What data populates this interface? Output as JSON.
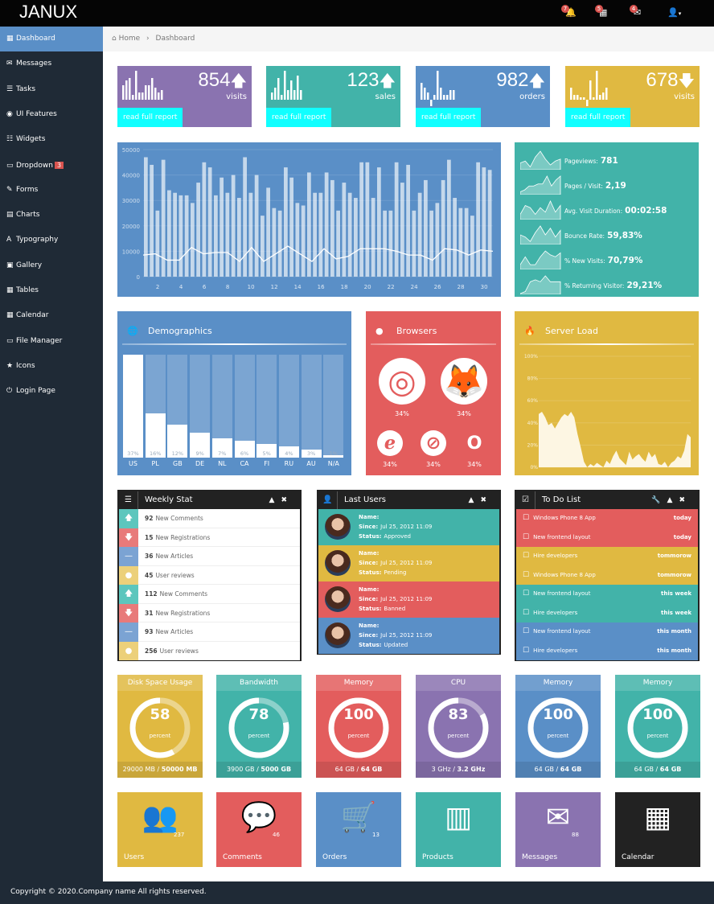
{
  "app": {
    "logo": "JANUX"
  },
  "navbar": {
    "notifications": "7",
    "tasks": "5",
    "messages": "4",
    "user_caret": "▾"
  },
  "sidebar": {
    "items": [
      {
        "label": "Dashboard",
        "icon": "▦"
      },
      {
        "label": "Messages",
        "icon": "✉"
      },
      {
        "label": "Tasks",
        "icon": "☰"
      },
      {
        "label": "UI Features",
        "icon": "◉"
      },
      {
        "label": "Widgets",
        "icon": "☷"
      },
      {
        "label": "Dropdown",
        "icon": "▭",
        "badge": "3"
      },
      {
        "label": "Forms",
        "icon": "✎"
      },
      {
        "label": "Charts",
        "icon": "▤"
      },
      {
        "label": "Typography",
        "icon": "A"
      },
      {
        "label": "Gallery",
        "icon": "▣"
      },
      {
        "label": "Tables",
        "icon": "▦"
      },
      {
        "label": "Calendar",
        "icon": "▦"
      },
      {
        "label": "File Manager",
        "icon": "▭"
      },
      {
        "label": "Icons",
        "icon": "★"
      },
      {
        "label": "Login Page",
        "icon": "⏻"
      }
    ]
  },
  "breadcrumb": {
    "home": "Home",
    "sep": "›",
    "current": "Dashboard"
  },
  "stats": [
    {
      "value": "854",
      "arrow": "🡅",
      "label": "visits",
      "link": "read full report",
      "color": "#8a73b0",
      "bars": [
        6,
        8,
        9,
        2,
        12,
        3,
        3,
        6,
        6,
        9,
        5,
        3,
        4
      ]
    },
    {
      "value": "123",
      "arrow": "🡅",
      "label": "sales",
      "link": "read full report",
      "color": "#42b3a9",
      "bars": [
        3,
        5,
        9,
        2,
        12,
        4,
        8,
        4,
        10,
        4
      ]
    },
    {
      "value": "982",
      "arrow": "🡅",
      "label": "orders",
      "link": "read full report",
      "color": "#5a8fc7",
      "bars": [
        7,
        5,
        3,
        -4,
        2,
        12,
        5,
        2,
        2,
        4,
        4
      ]
    },
    {
      "value": "678",
      "arrow": "🡇",
      "label": "visits",
      "link": "read full report",
      "color": "#e0b941",
      "bars": [
        5,
        2,
        2,
        1,
        1,
        -4,
        8,
        1,
        12,
        2,
        3,
        5
      ]
    }
  ],
  "chart_data": {
    "type": "bar",
    "title": "",
    "xlabel": "",
    "ylabel": "",
    "ylim": [
      0,
      50000
    ],
    "yticks": [
      "0",
      "10000",
      "20000",
      "30000",
      "40000",
      "50000"
    ],
    "xticks": [
      "2",
      "4",
      "6",
      "8",
      "10",
      "12",
      "14",
      "16",
      "18",
      "20",
      "22",
      "24",
      "26",
      "28",
      "30"
    ],
    "bars": [
      47000,
      44000,
      26000,
      46000,
      34000,
      33000,
      32000,
      32000,
      29000,
      37000,
      45000,
      43000,
      32000,
      39000,
      33000,
      40000,
      31000,
      47000,
      33000,
      40000,
      24000,
      35000,
      27000,
      26000,
      43000,
      39000,
      29000,
      28000,
      41000,
      33000,
      33000,
      41000,
      38000,
      26000,
      37000,
      33000,
      31000,
      45000,
      45000,
      31000,
      43000,
      26000,
      26000,
      45000,
      37000,
      44000,
      26000,
      33000,
      38000,
      26000,
      29000,
      38000,
      46000,
      31000,
      27000,
      27000,
      24000,
      45000,
      43000,
      42000
    ],
    "line": [
      8500,
      9000,
      6500,
      6500,
      11500,
      9000,
      9500,
      9500,
      6000,
      11500,
      6000,
      9000,
      12000,
      9000,
      6000,
      11000,
      7000,
      8000,
      11000,
      11000,
      11000,
      10000,
      8500,
      8500,
      6500,
      11000,
      10500,
      8500,
      10500,
      10000
    ]
  },
  "metrics": [
    {
      "label": "Pageviews:",
      "value": "781",
      "spark": [
        3,
        4,
        1,
        6,
        9,
        5,
        2,
        4,
        5
      ]
    },
    {
      "label": "Pages / Visit:",
      "value": "2,19",
      "spark": [
        1,
        2,
        4,
        4,
        5,
        5,
        9,
        4,
        7,
        9
      ]
    },
    {
      "label": "Avg. Visit Duration:",
      "value": "00:02:58",
      "spark": [
        2,
        6,
        5,
        2,
        5,
        3,
        8,
        3,
        6
      ]
    },
    {
      "label": "Bounce Rate:",
      "value": "59,83%",
      "spark": [
        4,
        3,
        1,
        5,
        8,
        4,
        7,
        3,
        6
      ]
    },
    {
      "label": "% New Visits:",
      "value": "70,79%",
      "spark": [
        2,
        6,
        2,
        2,
        6,
        9,
        7,
        6,
        8
      ]
    },
    {
      "label": "% Returning Visitor:",
      "value": "29,21%",
      "spark": [
        0,
        1,
        6,
        7,
        6,
        9,
        6,
        6,
        6
      ]
    }
  ],
  "demographics": {
    "title": "Demographics",
    "countries": [
      "US",
      "PL",
      "GB",
      "DE",
      "NL",
      "CA",
      "FI",
      "RU",
      "AU",
      "N/A"
    ],
    "values": [
      37,
      16,
      12,
      9,
      7,
      6,
      5,
      4,
      3,
      1
    ]
  },
  "browsers": {
    "title": "Browsers",
    "items": [
      {
        "name": "chrome",
        "pct": "34%"
      },
      {
        "name": "firefox",
        "pct": "34%"
      },
      {
        "name": "ie",
        "pct": "34%"
      },
      {
        "name": "safari",
        "pct": "34%"
      },
      {
        "name": "opera",
        "pct": "34%"
      }
    ]
  },
  "server_load": {
    "title": "Server Load",
    "yticks": [
      "0%",
      "20%",
      "40%",
      "60%",
      "80%",
      "100%"
    ],
    "values": [
      48,
      50,
      45,
      38,
      40,
      35,
      40,
      45,
      48,
      46,
      50,
      45,
      30,
      18,
      5,
      0,
      3,
      1,
      4,
      2,
      0,
      6,
      3,
      10,
      15,
      8,
      5,
      2,
      14,
      7,
      10,
      12,
      8,
      5,
      14,
      9,
      12,
      3,
      2,
      5,
      0,
      4,
      6,
      10,
      8,
      15,
      30,
      27
    ]
  },
  "weekly": {
    "title": "Weekly Stat",
    "rows": [
      {
        "n": "92",
        "t": "New Comments",
        "icon": "🡅",
        "color": "#5cc6bd"
      },
      {
        "n": "15",
        "t": "New Registrations",
        "icon": "🡇",
        "color": "#e87a7a"
      },
      {
        "n": "36",
        "t": "New Articles",
        "icon": "—",
        "color": "#7ba3d3"
      },
      {
        "n": "45",
        "t": "User reviews",
        "icon": "●",
        "color": "#ecd07a"
      },
      {
        "n": "112",
        "t": "New Comments",
        "icon": "🡅",
        "color": "#5cc6bd"
      },
      {
        "n": "31",
        "t": "New Registrations",
        "icon": "🡇",
        "color": "#e87a7a"
      },
      {
        "n": "93",
        "t": "New Articles",
        "icon": "—",
        "color": "#7ba3d3"
      },
      {
        "n": "256",
        "t": "User reviews",
        "icon": "●",
        "color": "#ecd07a"
      }
    ]
  },
  "last_users": {
    "title": "Last Users",
    "name_label": "Name:",
    "since_label": "Since:",
    "status_label": "Status:",
    "rows": [
      {
        "since": "Jul 25, 2012 11:09",
        "status": "Approved",
        "color": "#42b3a9"
      },
      {
        "since": "Jul 25, 2012 11:09",
        "status": "Pending",
        "color": "#e0b941"
      },
      {
        "since": "Jul 25, 2012 11:09",
        "status": "Banned",
        "color": "#e35d5d"
      },
      {
        "since": "Jul 25, 2012 11:09",
        "status": "Updated",
        "color": "#5a8fc7"
      }
    ]
  },
  "todo": {
    "title": "To Do List",
    "rows": [
      {
        "t": "Windows Phone 8 App",
        "d": "today",
        "color": "#e35d5d"
      },
      {
        "t": "New frontend layout",
        "d": "today",
        "color": "#e35d5d"
      },
      {
        "t": "Hire developers",
        "d": "tommorow",
        "color": "#e0b941"
      },
      {
        "t": "Windows Phone 8 App",
        "d": "tommorow",
        "color": "#e0b941"
      },
      {
        "t": "New frontend layout",
        "d": "this week",
        "color": "#42b3a9"
      },
      {
        "t": "Hire developers",
        "d": "this week",
        "color": "#42b3a9"
      },
      {
        "t": "New frontend layout",
        "d": "this month",
        "color": "#5a8fc7"
      },
      {
        "t": "Hire developers",
        "d": "this month",
        "color": "#5a8fc7"
      }
    ]
  },
  "gauges": [
    {
      "title": "Disk Space Usage",
      "value": "58",
      "pct": 58,
      "unit": "percent",
      "used": "29000 MB",
      "total": "50000 MB",
      "color": "#e0b941"
    },
    {
      "title": "Bandwidth",
      "value": "78",
      "pct": 78,
      "unit": "percent",
      "used": "3900 GB",
      "total": "5000 GB",
      "color": "#42b3a9"
    },
    {
      "title": "Memory",
      "value": "100",
      "pct": 100,
      "unit": "percent",
      "used": "64 GB",
      "total": "64 GB",
      "color": "#e35d5d"
    },
    {
      "title": "CPU",
      "value": "83",
      "pct": 83,
      "unit": "percent",
      "used": "3 GHz",
      "total": "3.2 GHz",
      "color": "#8a73b0"
    },
    {
      "title": "Memory",
      "value": "100",
      "pct": 100,
      "unit": "percent",
      "used": "64 GB",
      "total": "64 GB",
      "color": "#5a8fc7"
    },
    {
      "title": "Memory",
      "value": "100",
      "pct": 100,
      "unit": "percent",
      "used": "64 GB",
      "total": "64 GB",
      "color": "#42b3a9"
    }
  ],
  "tiles": [
    {
      "label": "Users",
      "count": "237",
      "icon": "👥",
      "color": "#e0b941"
    },
    {
      "label": "Comments",
      "count": "46",
      "icon": "💬",
      "color": "#e35d5d"
    },
    {
      "label": "Orders",
      "count": "13",
      "icon": "🛒",
      "color": "#5a8fc7"
    },
    {
      "label": "Products",
      "count": "",
      "icon": "▥",
      "color": "#42b3a9"
    },
    {
      "label": "Messages",
      "count": "88",
      "icon": "✉",
      "color": "#8a73b0"
    },
    {
      "label": "Calendar",
      "count": "",
      "icon": "▦",
      "color": "#222222"
    }
  ],
  "footer": {
    "copyright": "Copyright © 2020.Company name All rights reserved."
  }
}
